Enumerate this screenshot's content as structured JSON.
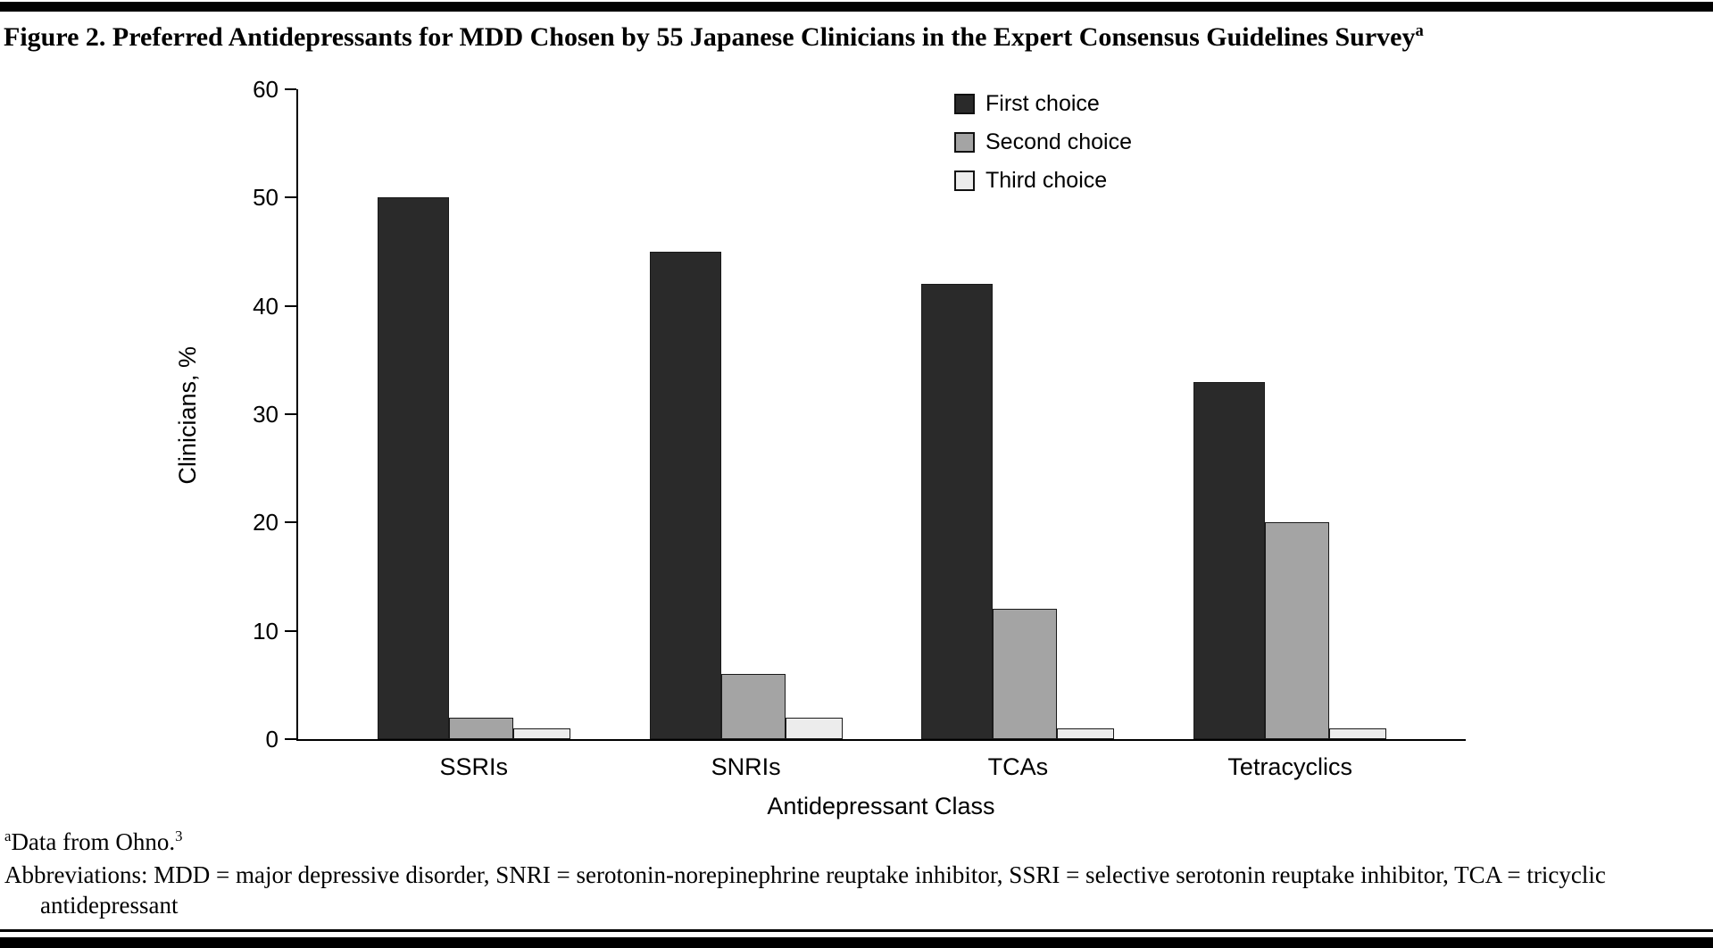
{
  "figure": {
    "title": "Figure 2. Preferred Antidepressants for MDD Chosen by 55 Japanese Clinicians in the Expert Consensus Guidelines Survey",
    "title_superscript": "a"
  },
  "chart_data": {
    "type": "bar",
    "title": "Preferred Antidepressants for MDD Chosen by 55 Japanese Clinicians in the Expert Consensus Guidelines Survey",
    "categories": [
      "SSRIs",
      "SNRIs",
      "TCAs",
      "Tetracyclics"
    ],
    "series": [
      {
        "name": "First choice",
        "color": "#2a2a2a",
        "values": [
          50,
          45,
          42,
          33
        ]
      },
      {
        "name": "Second choice",
        "color": "#a4a4a4",
        "values": [
          2,
          6,
          12,
          20
        ]
      },
      {
        "name": "Third choice",
        "color": "#ececec",
        "values": [
          1,
          2,
          1,
          1
        ]
      }
    ],
    "xlabel": "Antidepressant Class",
    "ylabel": "Clinicians, %",
    "ylim": [
      0,
      60
    ],
    "yticks": [
      0,
      10,
      20,
      30,
      40,
      50,
      60
    ],
    "grid": false,
    "legend_position": "top-right"
  },
  "footnotes": {
    "source_superscript": "a",
    "source_text": "Data from Ohno.",
    "source_ref": "3",
    "abbreviations": "Abbreviations: MDD = major depressive disorder, SNRI = serotonin-norepinephrine reuptake inhibitor, SSRI = selective serotonin reuptake inhibitor, TCA = tricyclic antidepressant"
  }
}
